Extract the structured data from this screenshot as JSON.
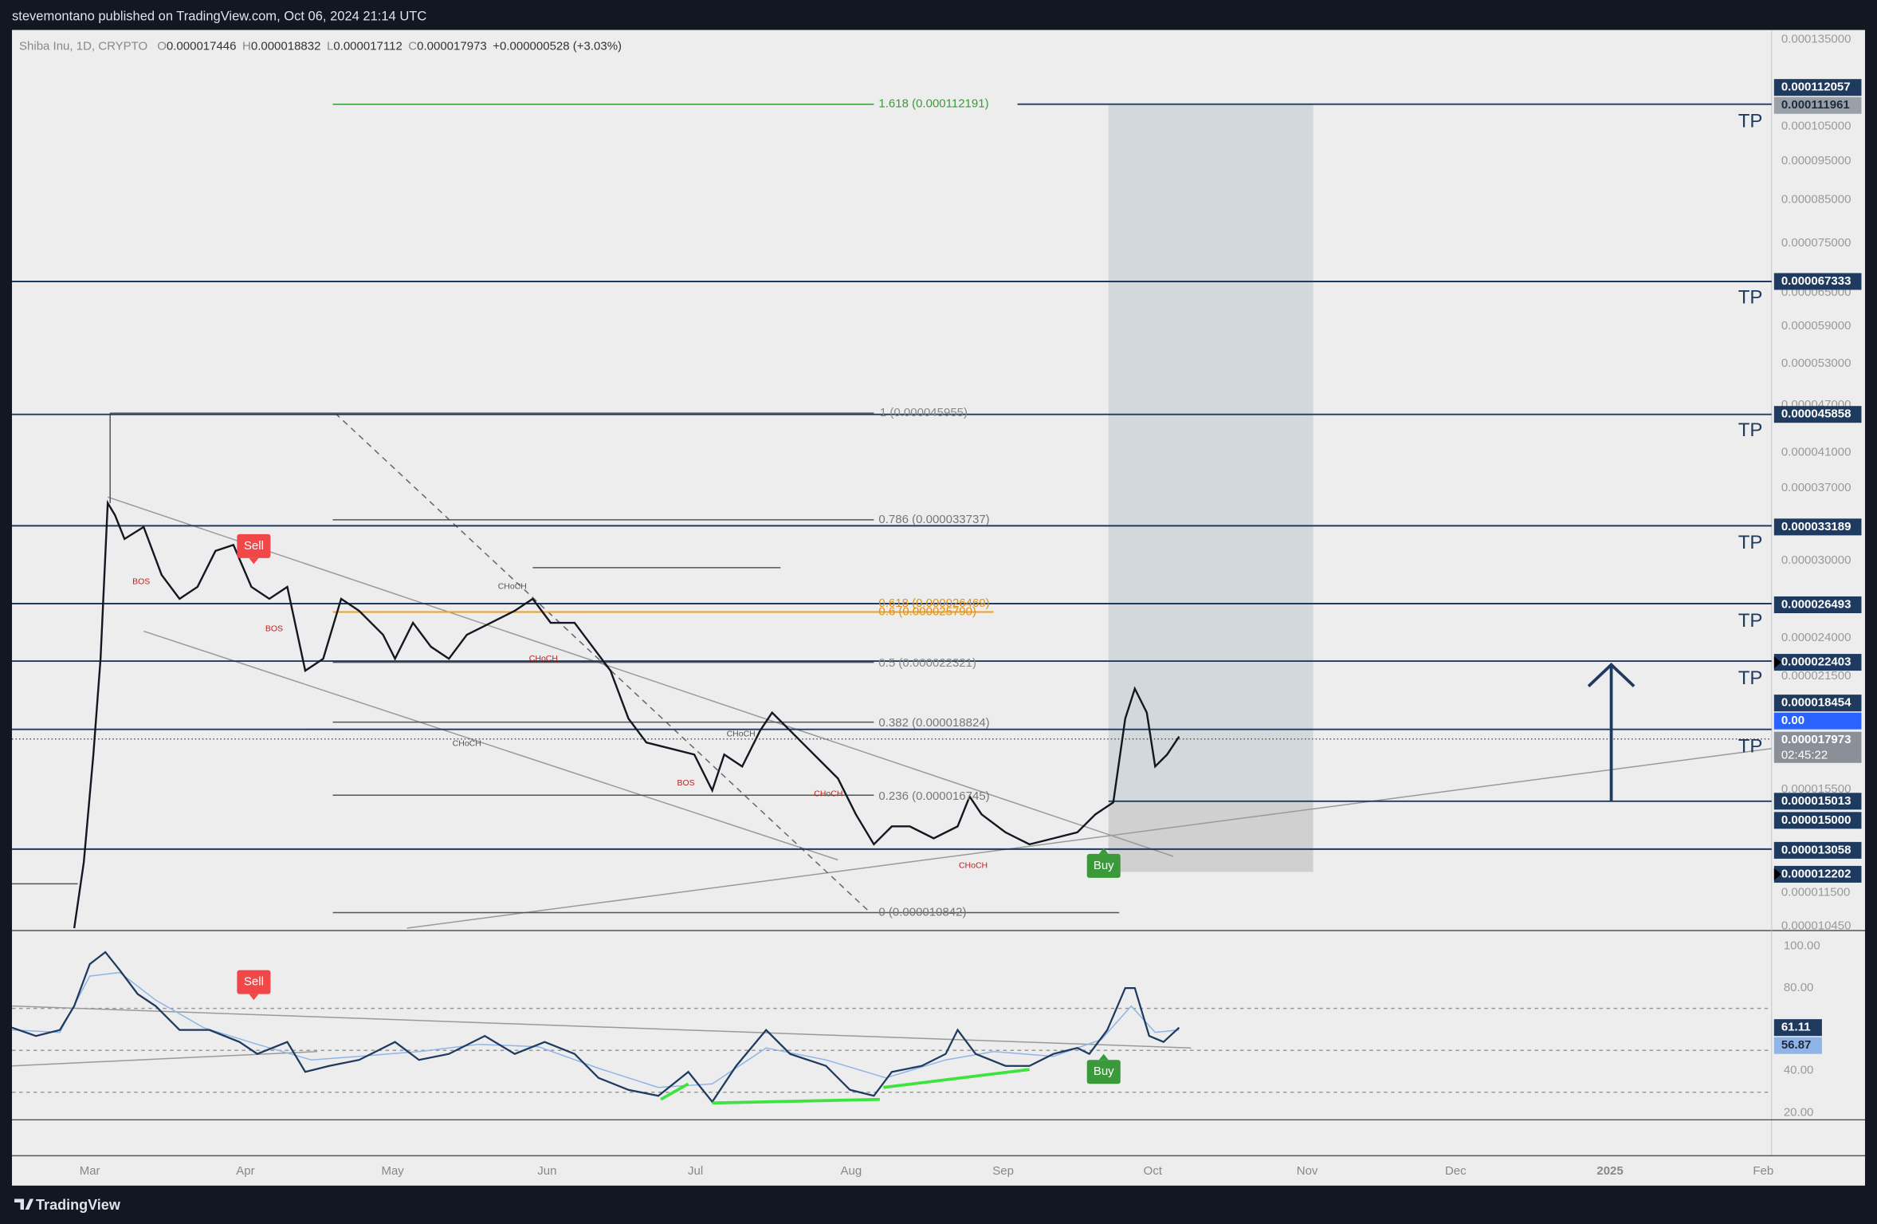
{
  "header": {
    "text": "stevemontano published on TradingView.com, Oct 06, 2024 21:14 UTC"
  },
  "legend": {
    "symbol": "Shiba Inu, 1D, CRYPTO",
    "items": [
      {
        "label": "O",
        "value": "0.000017446"
      },
      {
        "label": "H",
        "value": "0.000018832"
      },
      {
        "label": "L",
        "value": "0.000017112"
      },
      {
        "label": "C",
        "value": "0.000017973"
      }
    ],
    "change": "+0.000000528 (+3.03%)"
  },
  "price_axis": {
    "labels": [
      "0.000135000",
      "0.000105000",
      "0.000095000",
      "0.000085000",
      "0.000075000",
      "0.000065000",
      "0.000059000",
      "0.000053000",
      "0.000047000",
      "0.000041000",
      "0.000037000",
      "0.000030000",
      "0.000024000",
      "0.000021500",
      "0.000015500",
      "0.000011500",
      "0.000010450"
    ],
    "tags": [
      "0.000112057",
      "0.000111961",
      "0.000067333",
      "0.000045858",
      "0.000033189",
      "0.000026493",
      "0.000022403",
      "0.000018454",
      "0.00",
      "0.000017973",
      "0.000015013",
      "0.000015000",
      "0.000013058",
      "0.000012202"
    ],
    "countdown": "02:45:22"
  },
  "fib_levels": [
    "1.618 (0.000112191)",
    "1 (0.000045955)",
    "0.786 (0.000033737)",
    "0.618 (0.000026469)",
    "0.6 (0.000025790)",
    "0.5 (0.000022321)",
    "0.382 (0.000018824)",
    "0.236 (0.000016745)",
    "0 (0.000010842)"
  ],
  "tp_labels": [
    "TP",
    "TP",
    "TP",
    "TP",
    "TP",
    "TP",
    "TP"
  ],
  "signals": [
    "Sell",
    "Buy",
    "Sell",
    "Buy"
  ],
  "structure_labels": [
    "BOS",
    "BOS",
    "CHoCH",
    "CHoCH",
    "CHoCH",
    "CHoCH",
    "BOS",
    "CHoCH",
    "CHoCH"
  ],
  "rsi_axis": {
    "labels": [
      "100.00",
      "80.00",
      "40.00",
      "20.00"
    ],
    "tags": [
      "61.11",
      "56.87"
    ]
  },
  "time_axis": [
    "Mar",
    "Apr",
    "May",
    "Jun",
    "Jul",
    "Aug",
    "Sep",
    "Oct",
    "Nov",
    "Dec",
    "2025",
    "Feb"
  ],
  "footer": {
    "brand": "TradingView"
  }
}
